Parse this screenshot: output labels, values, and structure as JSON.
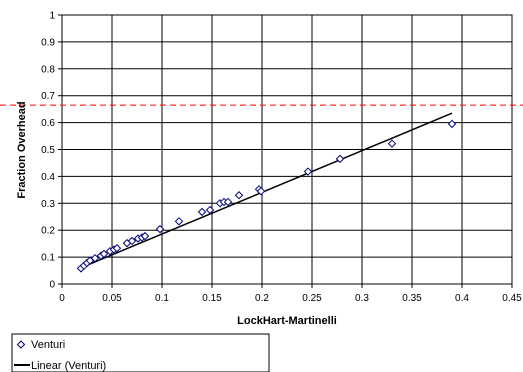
{
  "chart_data": {
    "type": "scatter",
    "title": "",
    "xlabel": "LockHart-Martinelli",
    "ylabel": "Fraction Overhead",
    "xlim": [
      0,
      0.45
    ],
    "ylim": [
      0,
      1
    ],
    "x_ticks": [
      "0",
      "0.05",
      "0.1",
      "0.15",
      "0.2",
      "0.25",
      "0.3",
      "0.35",
      "0.4",
      "0.45"
    ],
    "y_ticks": [
      "0",
      "0.1",
      "0.2",
      "0.3",
      "0.4",
      "0.5",
      "0.6",
      "0.7",
      "0.8",
      "0.9",
      "1"
    ],
    "grid": "major gridlines on both axes",
    "legend_position": "bottom-left, below the x-axis title",
    "series": [
      {
        "name": "Venturi",
        "marker": "diamond",
        "color": "#000080",
        "points": [
          {
            "x": 0.019,
            "y": 0.058
          },
          {
            "x": 0.022,
            "y": 0.068
          },
          {
            "x": 0.025,
            "y": 0.078
          },
          {
            "x": 0.028,
            "y": 0.087
          },
          {
            "x": 0.033,
            "y": 0.096
          },
          {
            "x": 0.039,
            "y": 0.105
          },
          {
            "x": 0.042,
            "y": 0.112
          },
          {
            "x": 0.048,
            "y": 0.122
          },
          {
            "x": 0.052,
            "y": 0.128
          },
          {
            "x": 0.055,
            "y": 0.133
          },
          {
            "x": 0.065,
            "y": 0.152
          },
          {
            "x": 0.07,
            "y": 0.16
          },
          {
            "x": 0.076,
            "y": 0.169
          },
          {
            "x": 0.08,
            "y": 0.173
          },
          {
            "x": 0.083,
            "y": 0.178
          },
          {
            "x": 0.098,
            "y": 0.204
          },
          {
            "x": 0.117,
            "y": 0.233
          },
          {
            "x": 0.14,
            "y": 0.268
          },
          {
            "x": 0.148,
            "y": 0.275
          },
          {
            "x": 0.158,
            "y": 0.3
          },
          {
            "x": 0.162,
            "y": 0.305
          },
          {
            "x": 0.166,
            "y": 0.305
          },
          {
            "x": 0.177,
            "y": 0.33
          },
          {
            "x": 0.197,
            "y": 0.352
          },
          {
            "x": 0.199,
            "y": 0.345
          },
          {
            "x": 0.246,
            "y": 0.418
          },
          {
            "x": 0.278,
            "y": 0.465
          },
          {
            "x": 0.33,
            "y": 0.522
          },
          {
            "x": 0.39,
            "y": 0.595
          }
        ]
      },
      {
        "name": "Linear (Venturi)",
        "line": true,
        "color": "#000000",
        "points": [
          {
            "x": 0.02,
            "y": 0.062
          },
          {
            "x": 0.39,
            "y": 0.635
          }
        ]
      }
    ],
    "reference_line": {
      "y": 0.665,
      "color": "#ff0000",
      "style": "dashed"
    }
  }
}
